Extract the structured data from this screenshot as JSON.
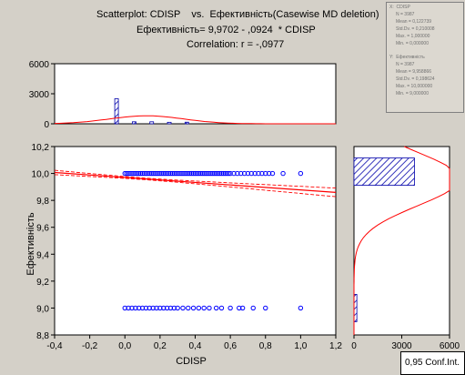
{
  "header": {
    "title": "Scatterplot: CDISP    vs.  Ефективність(Casewise MD deletion)",
    "equation": "Ефективність= 9,9702 - ,0924  * CDISP",
    "correlation": "Correlation: r = -,0977"
  },
  "stats": {
    "x": {
      "title": "X:  CDISP",
      "lines": [
        "N = 3987",
        "Mean = 0,122739",
        "Std.Dv. = 0,210008",
        "Max. = 1,000000",
        "Min. = 0,000000"
      ]
    },
    "y": {
      "title": "Y:  Ефективність",
      "lines": [
        "N = 3987",
        "Mean = 9,958866",
        "Std.Dv. = 0,198624",
        "Max. = 10,000000",
        "Min. = 9,000000"
      ]
    }
  },
  "footer": {
    "x_axis_label": "CDISP",
    "y_axis_label": "Ефективність",
    "conf_label": "0,95 Conf.Int."
  },
  "colors": {
    "background": "#d4d0c8",
    "points": "#0000ff",
    "hatch": "#0000aa",
    "regression": "#ff0000"
  },
  "chart_data": [
    {
      "id": "scatter",
      "type": "scatter",
      "xlabel": "CDISP",
      "ylabel": "Ефективність",
      "xlim": [
        -0.4,
        1.2
      ],
      "ylim": [
        8.8,
        10.2
      ],
      "x_ticks": [
        "-0,4",
        "-0,2",
        "0,0",
        "0,2",
        "0,4",
        "0,6",
        "0,8",
        "1,0",
        "1,2"
      ],
      "y_ticks": [
        "8,8",
        "9,0",
        "9,2",
        "9,4",
        "9,6",
        "9,8",
        "10,0",
        "10,2"
      ],
      "series": [
        {
          "y": 10.0,
          "x": [
            0.0,
            0.01,
            0.02,
            0.03,
            0.04,
            0.05,
            0.06,
            0.07,
            0.08,
            0.09,
            0.1,
            0.11,
            0.12,
            0.13,
            0.14,
            0.15,
            0.16,
            0.17,
            0.18,
            0.19,
            0.2,
            0.21,
            0.22,
            0.23,
            0.24,
            0.25,
            0.26,
            0.27,
            0.28,
            0.29,
            0.3,
            0.31,
            0.32,
            0.33,
            0.34,
            0.35,
            0.36,
            0.37,
            0.38,
            0.39,
            0.4,
            0.41,
            0.42,
            0.43,
            0.44,
            0.45,
            0.46,
            0.47,
            0.48,
            0.49,
            0.5,
            0.51,
            0.52,
            0.53,
            0.54,
            0.55,
            0.56,
            0.57,
            0.58,
            0.59,
            0.6,
            0.62,
            0.64,
            0.66,
            0.68,
            0.7,
            0.72,
            0.74,
            0.76,
            0.78,
            0.8,
            0.82,
            0.84,
            0.9,
            1.0
          ]
        },
        {
          "y": 9.0,
          "x": [
            0.0,
            0.02,
            0.04,
            0.06,
            0.08,
            0.1,
            0.12,
            0.14,
            0.16,
            0.18,
            0.2,
            0.22,
            0.24,
            0.26,
            0.28,
            0.3,
            0.33,
            0.36,
            0.39,
            0.42,
            0.45,
            0.48,
            0.52,
            0.55,
            0.6,
            0.65,
            0.67,
            0.73,
            0.8,
            1.0
          ]
        }
      ],
      "regression": {
        "intercept": 9.9702,
        "slope": -0.0924
      }
    },
    {
      "id": "x-histogram",
      "type": "bar",
      "xlim": [
        -0.4,
        1.2
      ],
      "ylim": [
        0,
        6000
      ],
      "y_ticks": [
        "0",
        "3000",
        "6000"
      ],
      "bins": [
        -0.05,
        0.05,
        0.15,
        0.25,
        0.35
      ],
      "values": [
        2500,
        200,
        200,
        150,
        160
      ],
      "normal_fit": {
        "mean": 0.122739,
        "sd": 0.210008,
        "peak": 800
      }
    },
    {
      "id": "y-histogram",
      "type": "bar",
      "orientation": "horizontal",
      "xlim": [
        0,
        6000
      ],
      "ylim": [
        8.8,
        10.2
      ],
      "x_ticks": [
        "0",
        "3000",
        "6000"
      ],
      "bins": [
        10.0,
        9.0
      ],
      "values": [
        3800,
        180
      ]
    }
  ]
}
